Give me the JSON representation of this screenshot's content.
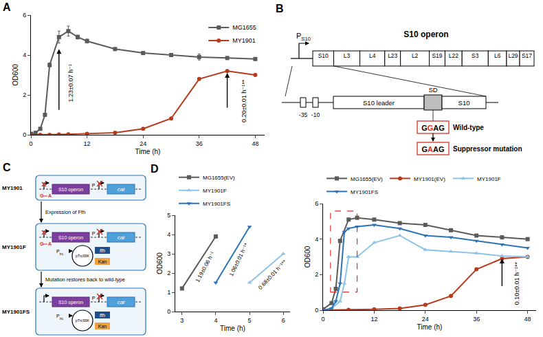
{
  "chart_data": [
    {
      "panel_label": "A",
      "type": "line",
      "x_label": "Time (h)",
      "y_label": "OD600",
      "xlim": [
        0,
        50
      ],
      "xticks": [
        0,
        12,
        24,
        36,
        48
      ],
      "ylim": [
        0,
        6
      ],
      "yticks": [
        0,
        2,
        4,
        6
      ],
      "grid": false,
      "legend": "upper right",
      "series": [
        {
          "name": "MG1655",
          "color": "#5a5a5a",
          "marker": "square",
          "x": [
            0,
            1,
            2,
            3,
            4,
            6,
            8,
            10,
            12,
            18,
            24,
            30,
            36,
            42,
            48
          ],
          "values": [
            0.05,
            0.1,
            0.3,
            1.0,
            3.5,
            4.9,
            5.2,
            4.9,
            4.7,
            4.3,
            4.1,
            4.0,
            3.9,
            3.85,
            3.8
          ],
          "errors": [
            0,
            0,
            0,
            0.05,
            0.1,
            0.3,
            0.25,
            0.1,
            0.1,
            0.05,
            0.05,
            0.05,
            0.15,
            0.05,
            0.05
          ]
        },
        {
          "name": "MY1901",
          "color": "#b83a1a",
          "marker": "circle",
          "x": [
            0,
            2,
            4,
            6,
            8,
            12,
            18,
            24,
            30,
            36,
            42,
            48
          ],
          "values": [
            0,
            0,
            0,
            0.02,
            0.03,
            0.05,
            0.1,
            0.3,
            0.82,
            2.8,
            3.2,
            3.0
          ]
        }
      ],
      "annotations": [
        {
          "text": "1.23±0.07 h⁻¹",
          "x": 8.5,
          "y": 2.6,
          "arrow": {
            "x": 6,
            "y": [
              1.2,
              4.3
            ]
          }
        },
        {
          "text": "0.20±0.01 h⁻¹**",
          "x": 45.5,
          "y": 1.7,
          "arrow": {
            "x": 42,
            "y": [
              1.3,
              3.1
            ]
          }
        }
      ]
    },
    {
      "panel_label": "D",
      "type": "line",
      "x_label": "Time (h)",
      "y_label": "OD600",
      "xlim": [
        2.8,
        6.2
      ],
      "xticks": [
        3,
        4,
        5,
        6
      ],
      "ylim": [
        0,
        5
      ],
      "yticks": [
        0,
        1,
        2,
        3,
        4,
        5
      ],
      "grid": false,
      "legend": "top",
      "series": [
        {
          "name": "MG1655(EV)",
          "color": "#5a5a5a",
          "marker": "square",
          "x": [
            3,
            4
          ],
          "values": [
            1.2,
            3.9
          ]
        },
        {
          "name": "MY1901F",
          "color": "#8cc3e8",
          "marker": "triangle-up",
          "x": [
            5,
            6
          ],
          "values": [
            1.5,
            3.0
          ]
        },
        {
          "name": "MY1901FS",
          "color": "#2b74b8",
          "marker": "triangle-down",
          "x": [
            4,
            5
          ],
          "values": [
            1.5,
            4.4
          ]
        }
      ],
      "annotations": [
        {
          "text": "1.19±0.06 h⁻¹",
          "x": 3.68,
          "y": 2.3
        },
        {
          "text": "1.06±0.01 h⁻¹*",
          "x": 4.68,
          "y": 2.7
        },
        {
          "text": "0.68±0.01 h⁻¹**",
          "x": 5.68,
          "y": 1.9
        }
      ]
    },
    {
      "type": "line",
      "x_label": "Time (h)",
      "y_label": "OD600",
      "xlim": [
        0,
        50
      ],
      "xticks": [
        0,
        12,
        24,
        36,
        48
      ],
      "ylim": [
        0,
        6
      ],
      "yticks": [
        0,
        2,
        4,
        6
      ],
      "grid": false,
      "legend": "top",
      "series": [
        {
          "name": "MG1655(EV)",
          "color": "#5a5a5a",
          "marker": "square",
          "x": [
            0,
            2,
            3,
            4,
            6,
            8,
            12,
            18,
            24,
            30,
            36,
            42,
            48
          ],
          "values": [
            0.05,
            0.4,
            1.2,
            3.9,
            5.1,
            5.2,
            5.1,
            4.9,
            4.8,
            4.5,
            4.2,
            4.1,
            4.0
          ]
        },
        {
          "name": "MY1901(EV)",
          "color": "#b83a1a",
          "marker": "circle",
          "x": [
            0,
            6,
            12,
            18,
            24,
            30,
            36,
            42,
            48
          ],
          "values": [
            0,
            0.02,
            0.05,
            0.1,
            0.3,
            0.8,
            2.3,
            2.9,
            3.0
          ]
        },
        {
          "name": "MY1901F",
          "color": "#8cc3e8",
          "marker": "triangle-up",
          "x": [
            0,
            2,
            4,
            5,
            6,
            8,
            12,
            18,
            24,
            30,
            36,
            42,
            48
          ],
          "values": [
            0,
            0.1,
            0.5,
            1.5,
            3.0,
            3.0,
            3.8,
            4.2,
            3.4,
            3.3,
            3.2,
            3.05,
            3.0
          ]
        },
        {
          "name": "MY1901FS",
          "color": "#2b74b8",
          "marker": "triangle-down",
          "x": [
            0,
            2,
            3,
            4,
            5,
            6,
            8,
            12,
            18,
            24,
            30,
            36,
            42,
            48
          ],
          "values": [
            0,
            0.1,
            0.5,
            1.5,
            4.4,
            4.6,
            4.7,
            4.8,
            4.6,
            4.2,
            4.1,
            3.9,
            3.7,
            3.5
          ]
        }
      ],
      "annotations": [
        {
          "text": "0.10±0.01 h⁻¹**",
          "x": 45.5,
          "y": 1.5,
          "arrow": {
            "x": 42,
            "y": [
              1.3,
              2.9
            ]
          }
        }
      ]
    }
  ],
  "diagram_b": {
    "panel_label": "B",
    "promoter": "P",
    "promoter_sub": "S10",
    "operon_title": "S10 operon",
    "genes": [
      "S10",
      "L3",
      "L4",
      "L23",
      "L2",
      "S19",
      "L22",
      "S3",
      "L6",
      "L29",
      "S17"
    ],
    "elements": {
      "minus35": "-35",
      "minus10": "-10",
      "leader": "S10 leader",
      "sd": "SD",
      "gene": "S10"
    },
    "wild_type": {
      "label": "Wild-type",
      "sequence": "GGAG"
    },
    "mutant": {
      "label": "Suppressor mutation",
      "sequence": "GAAG"
    }
  },
  "diagram_c": {
    "panel_label": "C",
    "operon": "S10 operon",
    "reporter": "cat",
    "promoter": "P",
    "mutation": {
      "from": "G",
      "to": "A"
    },
    "cells": [
      {
        "name": "MY1901",
        "mutant": true,
        "plasmid": false
      },
      {
        "name": "MY1901F",
        "mutant": true,
        "plasmid": true
      },
      {
        "name": "MY1901FS",
        "mutant": false,
        "plasmid": true
      }
    ],
    "steps": [
      "Expression of Ffh",
      "Mutation restores back to wild-type"
    ],
    "plasmid": {
      "name": "pTrc99K",
      "gene": "ffh",
      "promoter": "P",
      "promoter_sub": "trc",
      "resistance": "Kan"
    }
  }
}
